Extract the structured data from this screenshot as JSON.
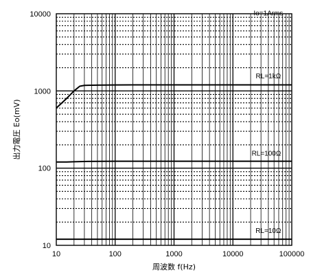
{
  "chart_data": {
    "type": "line",
    "xlabel": "周波数 f(Hz)",
    "ylabel": "出力電圧 Eo(mV)",
    "x_scale": "log",
    "y_scale": "log",
    "xlim": [
      10,
      100000
    ],
    "ylim": [
      10,
      10000
    ],
    "x_ticks": [
      {
        "value": 10,
        "label": "10"
      },
      {
        "value": 100,
        "label": "100"
      },
      {
        "value": 1000,
        "label": "1000"
      },
      {
        "value": 10000,
        "label": "10000"
      },
      {
        "value": 100000,
        "label": "100000"
      }
    ],
    "y_ticks": [
      {
        "value": 10,
        "label": "10"
      },
      {
        "value": 100,
        "label": "100"
      },
      {
        "value": 1000,
        "label": "1000"
      },
      {
        "value": 10000,
        "label": "10000"
      }
    ],
    "grid": true,
    "annotations": [
      {
        "text": "Io=1Arms",
        "x": 40000,
        "y": 9500
      },
      {
        "text": "RL=1kΩ",
        "x": 40000,
        "y": 1450
      },
      {
        "text": "RL=100Ω",
        "x": 37000,
        "y": 145
      },
      {
        "text": "RL=10Ω",
        "x": 40000,
        "y": 14.5
      }
    ],
    "series": [
      {
        "name": "RL=1kΩ",
        "x": [
          10,
          15,
          20,
          25,
          30,
          50,
          100,
          200,
          1000,
          10000,
          100000
        ],
        "y": [
          600,
          800,
          1000,
          1150,
          1180,
          1190,
          1195,
          1200,
          1200,
          1200,
          1200
        ]
      },
      {
        "name": "RL=100Ω",
        "x": [
          10,
          15,
          20,
          30,
          100,
          1000,
          10000,
          100000
        ],
        "y": [
          120,
          120,
          121,
          122,
          123,
          123,
          123,
          123
        ]
      },
      {
        "name": "RL=10Ω",
        "x": [
          10,
          100,
          1000,
          10000,
          100000
        ],
        "y": [
          12,
          12,
          12,
          12,
          12
        ]
      }
    ]
  }
}
